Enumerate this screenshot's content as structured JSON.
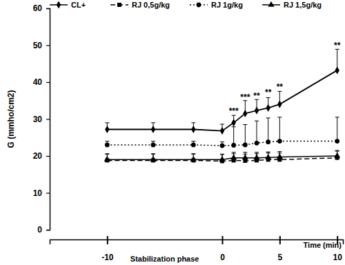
{
  "chart_data": {
    "type": "line",
    "y_label": "G (mmho/cm2)",
    "x_label": "Time (min)",
    "x_range_label": {
      "text": "Stabilization phase",
      "from": -10,
      "to": 0
    },
    "x": [
      -10,
      -6,
      -2.5,
      0,
      1,
      2,
      3,
      4,
      5,
      10
    ],
    "xlim": [
      -15,
      10.5
    ],
    "xticks": [
      -10,
      0,
      5,
      10
    ],
    "ylim": [
      0,
      60
    ],
    "yticks": [
      0,
      10,
      20,
      30,
      40,
      50,
      60
    ],
    "grid": false,
    "legend": "top",
    "series": [
      {
        "name": "CL+",
        "color": "#000000",
        "marker": "diamond",
        "line_style": "solid",
        "values": [
          27.2,
          27.2,
          27.2,
          26.8,
          29.0,
          31.5,
          32.3,
          33.0,
          34.0,
          43.2
        ],
        "errors": [
          1.8,
          1.8,
          1.8,
          1.8,
          2.0,
          3.5,
          3.0,
          2.8,
          3.5,
          5.7
        ]
      },
      {
        "name": "RJ 0,5g/kg",
        "color": "#000000",
        "marker": "square",
        "line_style": "dashed",
        "values": [
          18.8,
          18.8,
          18.8,
          18.6,
          18.8,
          18.7,
          18.8,
          19.0,
          19.0,
          19.5
        ],
        "errors": [
          1.8,
          1.8,
          1.8,
          1.8,
          1.8,
          1.8,
          1.8,
          1.8,
          1.8,
          1.8
        ]
      },
      {
        "name": "RJ 1g/kg",
        "color": "#000000",
        "marker": "circle",
        "line_style": "dotted",
        "values": [
          23.0,
          23.0,
          23.0,
          22.8,
          22.9,
          23.0,
          23.5,
          23.8,
          24.0,
          24.0
        ],
        "errors": [
          1.0,
          1.0,
          1.0,
          1.0,
          5.0,
          5.5,
          6.0,
          6.5,
          6.5,
          6.5
        ]
      },
      {
        "name": "RJ 1,5g/kg",
        "color": "#000000",
        "marker": "triangle",
        "line_style": "solid",
        "values": [
          19.0,
          19.0,
          19.0,
          19.0,
          19.5,
          19.5,
          19.5,
          19.6,
          19.7,
          20.0
        ],
        "errors": [
          1.5,
          1.5,
          1.5,
          1.5,
          1.5,
          1.5,
          1.5,
          1.5,
          1.5,
          1.5
        ]
      }
    ],
    "annotations": [
      {
        "text": "***",
        "x": 1,
        "y": 31.4
      },
      {
        "text": "***",
        "x": 2,
        "y": 35.2
      },
      {
        "text": "**",
        "x": 3,
        "y": 35.6
      },
      {
        "text": "**",
        "x": 4,
        "y": 36.4
      },
      {
        "text": "**",
        "x": 5,
        "y": 38.0
      },
      {
        "text": "**",
        "x": 10,
        "y": 49.2
      }
    ]
  }
}
